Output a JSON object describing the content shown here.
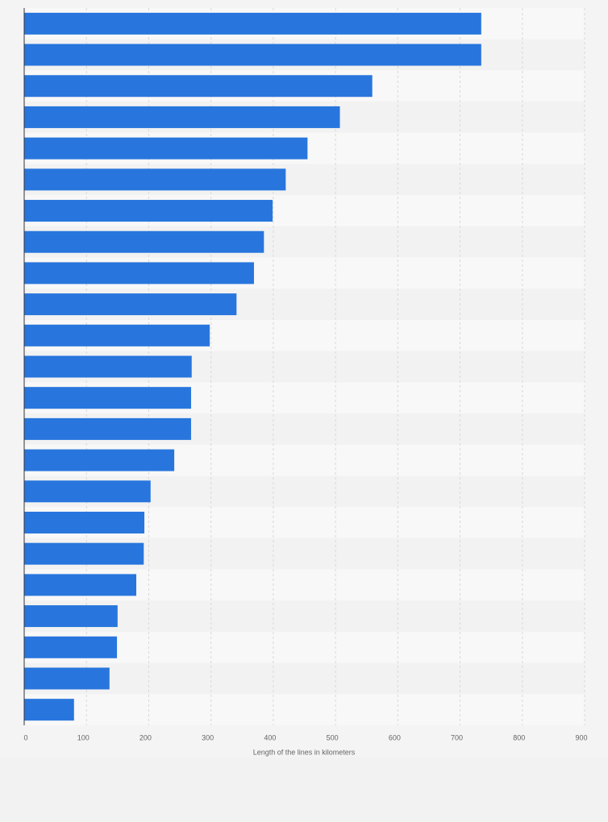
{
  "chart_data": {
    "type": "bar",
    "orientation": "horizontal",
    "x_label": "Length of the lines in kilometers",
    "categories": [
      null,
      null,
      null,
      null,
      null,
      null,
      null,
      null,
      null,
      null,
      null,
      null,
      null,
      null,
      null,
      null,
      null,
      null,
      null,
      null,
      null,
      null,
      null
    ],
    "values": [
      734,
      734,
      559,
      507,
      455,
      420,
      399,
      385,
      369,
      341,
      298,
      269,
      268,
      268,
      241,
      203,
      193,
      192,
      180,
      150,
      149,
      137,
      80
    ],
    "color": "#2876dd",
    "xlim": [
      0,
      900
    ],
    "xticks": [
      0,
      100,
      200,
      300,
      400,
      500,
      600,
      700,
      800,
      900
    ],
    "grid": true
  }
}
